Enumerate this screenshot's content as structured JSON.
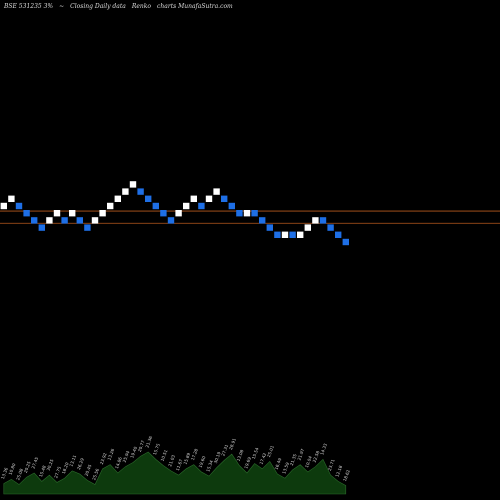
{
  "header": {
    "symbol": "BSE 531235 3%",
    "arrow": "~",
    "description": "Closing Daily data",
    "chart_kind": "Renko",
    "site": "charts MunafaSutra.com"
  },
  "colors": {
    "background": "#000000",
    "up_brick": "#ffffff",
    "down_brick": "#1e6fe6",
    "reference_line": "#b85a1e",
    "volume_fill": "#0d3a0d",
    "volume_line": "#2a6a2a",
    "volume_label": "#d8d8d8"
  },
  "chart_data": {
    "type": "renko",
    "title": "",
    "bricks": [
      {
        "level": 0,
        "dir": "up"
      },
      {
        "level": 1,
        "dir": "up"
      },
      {
        "level": 0,
        "dir": "down"
      },
      {
        "level": -1,
        "dir": "down"
      },
      {
        "level": -2,
        "dir": "down"
      },
      {
        "level": -3,
        "dir": "down"
      },
      {
        "level": -2,
        "dir": "up"
      },
      {
        "level": -1,
        "dir": "up"
      },
      {
        "level": -2,
        "dir": "down"
      },
      {
        "level": -1,
        "dir": "up"
      },
      {
        "level": -2,
        "dir": "down"
      },
      {
        "level": -3,
        "dir": "down"
      },
      {
        "level": -2,
        "dir": "up"
      },
      {
        "level": -1,
        "dir": "up"
      },
      {
        "level": 0,
        "dir": "up"
      },
      {
        "level": 1,
        "dir": "up"
      },
      {
        "level": 2,
        "dir": "up"
      },
      {
        "level": 3,
        "dir": "up"
      },
      {
        "level": 2,
        "dir": "down"
      },
      {
        "level": 1,
        "dir": "down"
      },
      {
        "level": 0,
        "dir": "down"
      },
      {
        "level": -1,
        "dir": "down"
      },
      {
        "level": -2,
        "dir": "down"
      },
      {
        "level": -1,
        "dir": "up"
      },
      {
        "level": 0,
        "dir": "up"
      },
      {
        "level": 1,
        "dir": "up"
      },
      {
        "level": 0,
        "dir": "down"
      },
      {
        "level": 1,
        "dir": "up"
      },
      {
        "level": 2,
        "dir": "up"
      },
      {
        "level": 1,
        "dir": "down"
      },
      {
        "level": 0,
        "dir": "down"
      },
      {
        "level": -1,
        "dir": "down"
      },
      {
        "level": -1,
        "dir": "up"
      },
      {
        "level": -1,
        "dir": "down"
      },
      {
        "level": -2,
        "dir": "down"
      },
      {
        "level": -3,
        "dir": "down"
      },
      {
        "level": -4,
        "dir": "down"
      },
      {
        "level": -4,
        "dir": "up"
      },
      {
        "level": -4,
        "dir": "down"
      },
      {
        "level": -4,
        "dir": "up"
      },
      {
        "level": -3,
        "dir": "up"
      },
      {
        "level": -2,
        "dir": "up"
      },
      {
        "level": -2,
        "dir": "down"
      },
      {
        "level": -3,
        "dir": "down"
      },
      {
        "level": -4,
        "dir": "down"
      },
      {
        "level": -5,
        "dir": "down"
      }
    ],
    "reference_levels": [
      -0.7,
      -2.4
    ],
    "volume": [
      10,
      14,
      9,
      16,
      20,
      12,
      18,
      11,
      15,
      22,
      19,
      13,
      9,
      24,
      28,
      20,
      26,
      30,
      36,
      40,
      33,
      27,
      22,
      18,
      24,
      28,
      21,
      17,
      25,
      32,
      38,
      27,
      20,
      29,
      24,
      31,
      19,
      15,
      23,
      28,
      21,
      26,
      33,
      18,
      12,
      8
    ],
    "volume_labels": [
      "13.36",
      "10.80",
      "25.08",
      "20.25",
      "27.45",
      "15.48",
      "30.25",
      "27.75",
      "18.20",
      "13.11",
      "26.29",
      "20.45",
      "25.56",
      "23.92",
      "13.26",
      "14.86",
      "25.94",
      "19.40",
      "20.77",
      "21.36",
      "15.75",
      "10.51",
      "21.03",
      "11.67",
      "15.89",
      "17.28",
      "19.60",
      "15.34",
      "30.19",
      "27.31",
      "28.91",
      "13.08",
      "19.69",
      "15.54",
      "17.42",
      "25.01",
      "16.49",
      "13.59",
      "21.35",
      "21.97",
      "10.04",
      "22.58",
      "14.33",
      "23.71",
      "12.18",
      "18.62"
    ]
  }
}
